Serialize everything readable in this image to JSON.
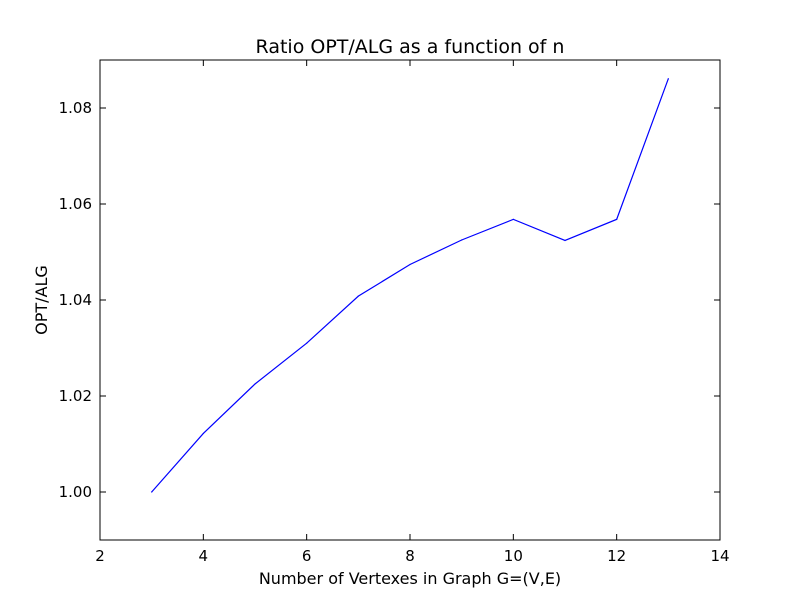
{
  "chart_data": {
    "type": "line",
    "title": "Ratio OPT/ALG as a function of n",
    "xlabel": "Number of Vertexes in Graph G=(V,E)",
    "ylabel": "OPT/ALG",
    "xlim": [
      2,
      14
    ],
    "ylim": [
      0.99,
      1.09
    ],
    "xticks": [
      2,
      4,
      6,
      8,
      10,
      12,
      14
    ],
    "yticks": [
      1.0,
      1.02,
      1.04,
      1.06,
      1.08
    ],
    "xtick_labels": [
      "2",
      "4",
      "6",
      "8",
      "10",
      "12",
      "14"
    ],
    "ytick_labels": [
      "1.00",
      "1.02",
      "1.04",
      "1.06",
      "1.08"
    ],
    "grid": false,
    "line_color": "#0000ff",
    "series": [
      {
        "x": [
          3,
          4,
          5,
          6,
          7,
          8,
          9,
          10,
          11,
          12,
          13
        ],
        "values": [
          1.0,
          1.0122,
          1.0225,
          1.031,
          1.0408,
          1.0474,
          1.0525,
          1.0568,
          1.0524,
          1.0568,
          1.0861
        ]
      }
    ]
  }
}
